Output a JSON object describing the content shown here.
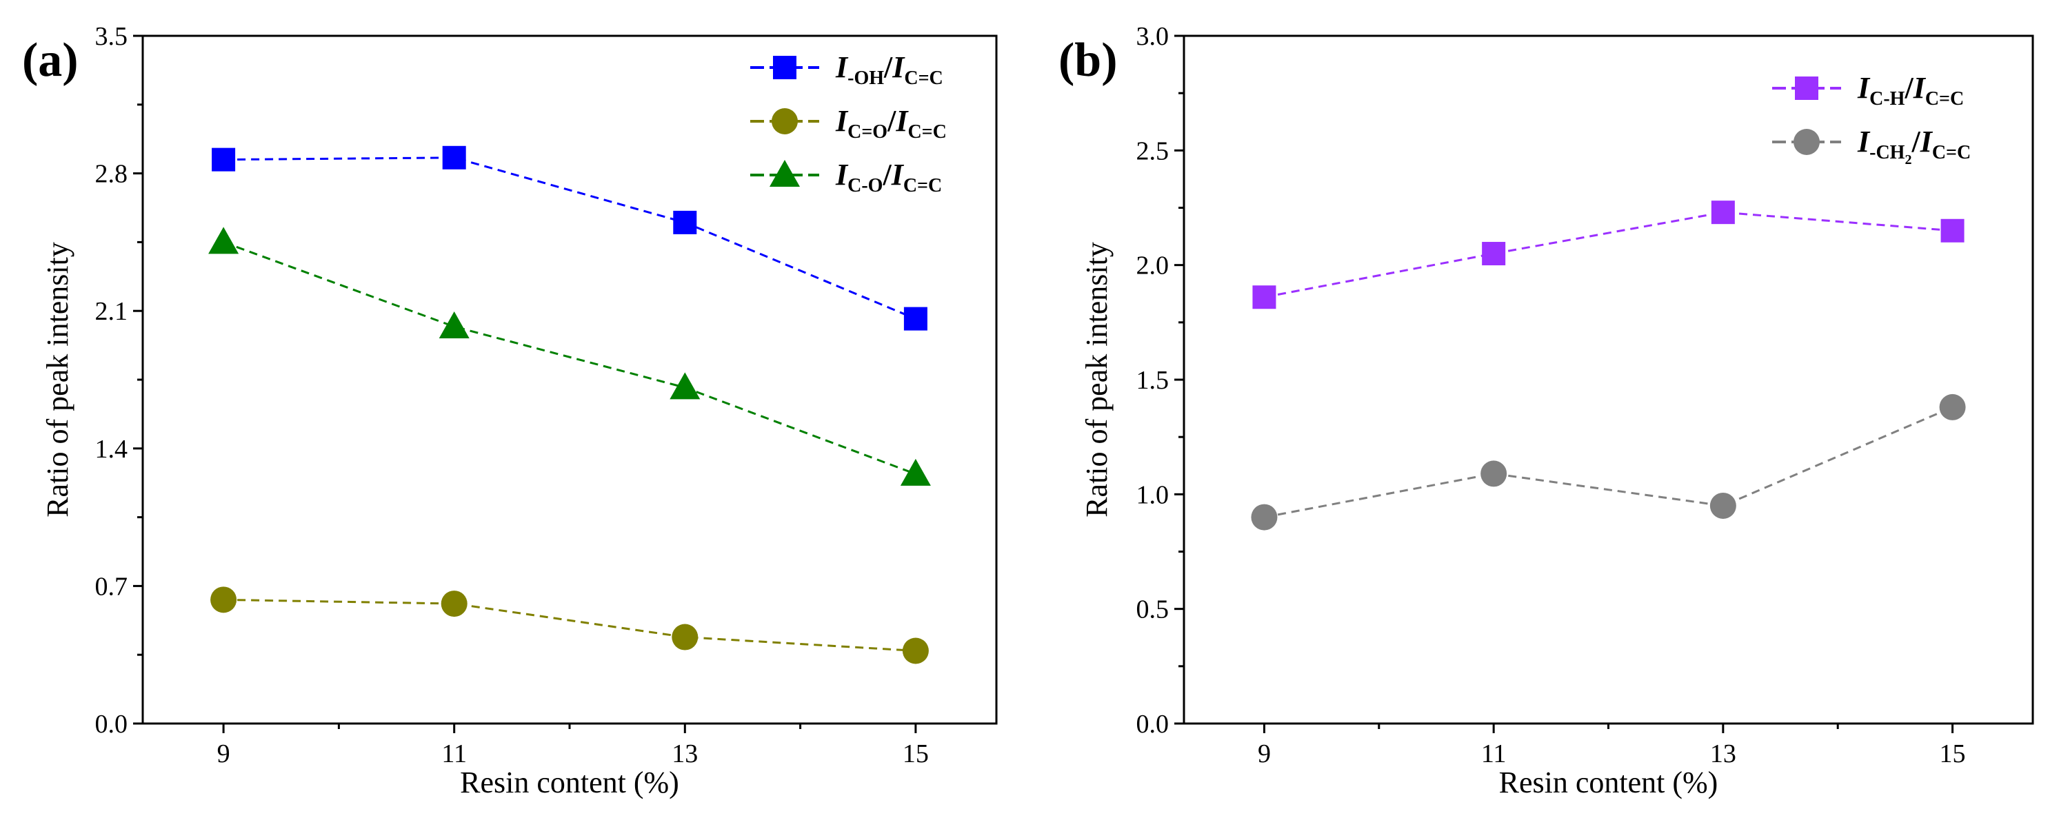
{
  "chart_data": [
    {
      "type": "line",
      "panel_label": "(a)",
      "xlabel": "Resin content (%)",
      "ylabel": "Ratio of peak intensity",
      "xlim": [
        8.3,
        15.7
      ],
      "ylim": [
        0,
        3.5
      ],
      "x": [
        9,
        11,
        13,
        15
      ],
      "xticks": [
        "9",
        "11",
        "13",
        "15"
      ],
      "yticks": [
        "0.0",
        "0.7",
        "1.4",
        "2.1",
        "2.8",
        "3.5"
      ],
      "legend_position": "top-right",
      "series": [
        {
          "legend": [
            [
              "I",
              "i"
            ],
            [
              "-OH",
              "s"
            ],
            [
              "/",
              ""
            ],
            [
              "I",
              "i"
            ],
            [
              "C=C",
              "s"
            ]
          ],
          "marker": "square",
          "color": "#0000ff",
          "values": [
            2.87,
            2.88,
            2.55,
            2.06
          ]
        },
        {
          "legend": [
            [
              "I",
              "i"
            ],
            [
              "C=O",
              "s"
            ],
            [
              "/",
              ""
            ],
            [
              "I",
              "i"
            ],
            [
              "C=C",
              "s"
            ]
          ],
          "marker": "circle",
          "color": "#808000",
          "values": [
            0.63,
            0.61,
            0.44,
            0.37
          ]
        },
        {
          "legend": [
            [
              "I",
              "i"
            ],
            [
              "C-O",
              "s"
            ],
            [
              "/",
              ""
            ],
            [
              "I",
              "i"
            ],
            [
              "C=C",
              "s"
            ]
          ],
          "marker": "triangle",
          "color": "#008000",
          "values": [
            2.45,
            2.02,
            1.71,
            1.27
          ]
        }
      ]
    },
    {
      "type": "line",
      "panel_label": "(b)",
      "xlabel": "Resin content (%)",
      "ylabel": "Ratio of peak intensity",
      "xlim": [
        8.3,
        15.7
      ],
      "ylim": [
        0,
        3.0
      ],
      "x": [
        9,
        11,
        13,
        15
      ],
      "xticks": [
        "9",
        "11",
        "13",
        "15"
      ],
      "yticks": [
        "0.0",
        "0.5",
        "1.0",
        "1.5",
        "2.0",
        "2.5",
        "3.0"
      ],
      "legend_position": "top-right",
      "series": [
        {
          "legend": [
            [
              "I",
              "i"
            ],
            [
              "C-H",
              "s"
            ],
            [
              "/",
              ""
            ],
            [
              "I",
              "i"
            ],
            [
              "C=C",
              "s"
            ]
          ],
          "marker": "square",
          "color": "#9b30ff",
          "values": [
            1.86,
            2.05,
            2.23,
            2.15
          ]
        },
        {
          "legend": [
            [
              "I",
              "i"
            ],
            [
              "-CH",
              "s"
            ],
            [
              "2",
              "ss"
            ],
            [
              "/",
              ""
            ],
            [
              "I",
              "i"
            ],
            [
              "C=C",
              "s"
            ]
          ],
          "marker": "circle",
          "color": "#808080",
          "values": [
            0.9,
            1.09,
            0.95,
            1.38
          ]
        }
      ]
    }
  ]
}
